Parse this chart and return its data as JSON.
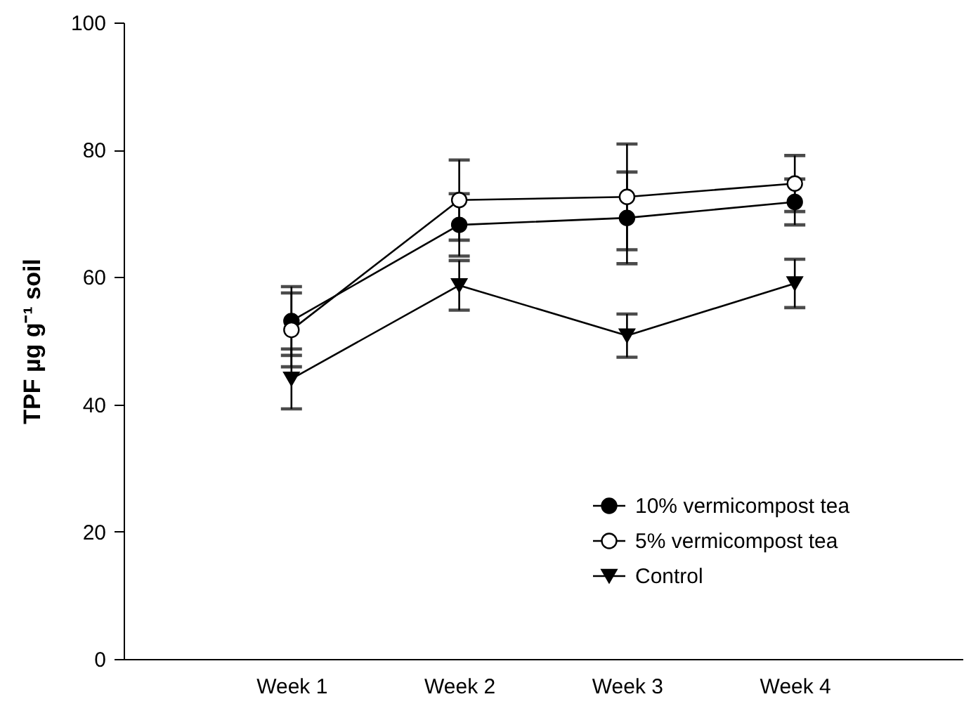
{
  "chart_data": {
    "type": "line",
    "ylabel": "TPF µg g⁻¹ soil",
    "categories": [
      "Week 1",
      "Week 2",
      "Week 3",
      "Week 4"
    ],
    "series": [
      {
        "name": "10% vermicompost tea",
        "color": "#000000",
        "marker": "circle",
        "values": [
          53.1,
          68.2,
          69.3,
          71.8
        ],
        "errors": [
          5.4,
          4.9,
          7.2,
          3.6
        ]
      },
      {
        "name": "5% vermicompost tea",
        "color": "#ffffff",
        "marker": "circle",
        "values": [
          51.7,
          72.1,
          72.6,
          74.7
        ],
        "errors": [
          5.8,
          6.3,
          8.3,
          4.4
        ]
      },
      {
        "name": "Control",
        "color": "#000000",
        "marker": "triangle",
        "values": [
          44.0,
          58.7,
          50.8,
          59.0
        ],
        "errors": [
          4.7,
          3.9,
          3.4,
          3.8
        ]
      }
    ],
    "ylim": [
      0,
      100
    ],
    "yticks": [
      0,
      20,
      40,
      60,
      80,
      100
    ],
    "grid": false,
    "legend": "bottom right"
  }
}
